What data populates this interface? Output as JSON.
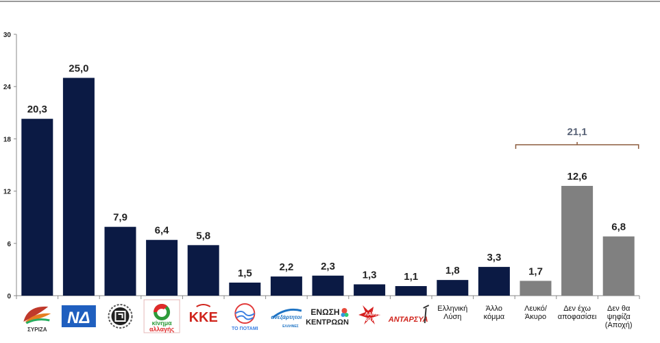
{
  "chart_data": {
    "type": "bar",
    "title": "",
    "xlabel": "",
    "ylabel": "",
    "ylim": [
      0,
      30
    ],
    "yticks": [
      0,
      6,
      12,
      18,
      24,
      30
    ],
    "grid": false,
    "legend": "none",
    "decimal_separator": ",",
    "categories": [
      {
        "id": "syriza",
        "kind": "logo",
        "logo_text": "ΣΥΡΙΖΑ",
        "value": 20.3,
        "label": "20,3",
        "color": "#0b1a44"
      },
      {
        "id": "nd",
        "kind": "logo",
        "logo_text": "ΝΔ",
        "value": 25.0,
        "label": "25,0",
        "color": "#0b1a44"
      },
      {
        "id": "xa",
        "kind": "logo",
        "logo_text": "",
        "value": 7.9,
        "label": "7,9",
        "color": "#0b1a44"
      },
      {
        "id": "kinal",
        "kind": "logo",
        "logo_text": "κίνημα αλλαγής",
        "value": 6.4,
        "label": "6,4",
        "color": "#0b1a44"
      },
      {
        "id": "kke",
        "kind": "logo",
        "logo_text": "ΚΚΕ",
        "value": 5.8,
        "label": "5,8",
        "color": "#0b1a44"
      },
      {
        "id": "potami",
        "kind": "logo",
        "logo_text": "ΤΟ ΠΟΤΑΜΙ",
        "value": 1.5,
        "label": "1,5",
        "color": "#0b1a44"
      },
      {
        "id": "anel",
        "kind": "logo",
        "logo_text": "ΑΝΕΞΑΡΤΗΤΟΙ ΕΛΛΗΝΕΣ",
        "value": 2.2,
        "label": "2,2",
        "color": "#0b1a44"
      },
      {
        "id": "enosi",
        "kind": "logo",
        "logo_text": "ΕΝΩΣΗ ΚΕΝΤΡΩΩΝ",
        "value": 2.3,
        "label": "2,3",
        "color": "#0b1a44"
      },
      {
        "id": "le",
        "kind": "logo",
        "logo_text": "ΛΑΪΚΗ ΕΝΟΤΗΤΑ",
        "value": 1.3,
        "label": "1,3",
        "color": "#0b1a44"
      },
      {
        "id": "antarsya",
        "kind": "logo",
        "logo_text": "ΑΝΤΑΡΣΥΑ",
        "value": 1.1,
        "label": "1,1",
        "color": "#0b1a44"
      },
      {
        "id": "el",
        "kind": "text",
        "text_lines": [
          "Ελληνική",
          "Λύση"
        ],
        "value": 1.8,
        "label": "1,8",
        "color": "#0b1a44"
      },
      {
        "id": "allo",
        "kind": "text",
        "text_lines": [
          "Άλλο",
          "κόμμα"
        ],
        "value": 3.3,
        "label": "3,3",
        "color": "#0b1a44"
      },
      {
        "id": "leuko",
        "kind": "text",
        "text_lines": [
          "Λευκό/",
          "Άκυρο"
        ],
        "value": 1.7,
        "label": "1,7",
        "color": "#808080"
      },
      {
        "id": "den_exo",
        "kind": "text",
        "text_lines": [
          "Δεν έχω",
          "αποφασίσει"
        ],
        "value": 12.6,
        "label": "12,6",
        "color": "#808080"
      },
      {
        "id": "den_tha",
        "kind": "text",
        "text_lines": [
          "Δεν θα",
          "ψηφίζα",
          "(Αποχή)"
        ],
        "value": 6.8,
        "label": "6,8",
        "color": "#808080"
      }
    ],
    "annotations": [
      {
        "type": "brace",
        "from": "leuko",
        "to": "den_tha",
        "label": "21,1",
        "color": "#8b5a3c"
      }
    ]
  }
}
